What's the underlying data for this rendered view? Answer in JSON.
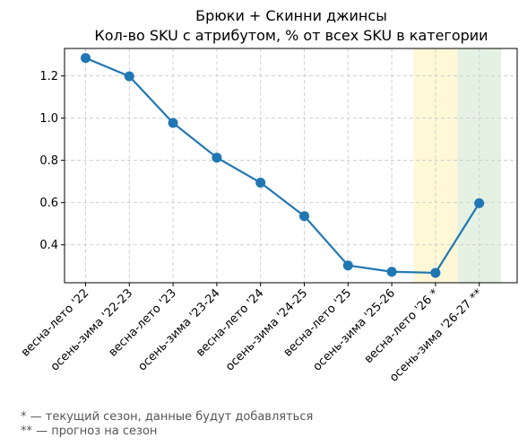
{
  "chart_data": {
    "type": "line",
    "title": "Брюки + Скинни джинсы",
    "subtitle": "Кол-во SKU с атрибутом, % от всех SKU в категории",
    "xlabel": "",
    "ylabel": "",
    "categories": [
      "весна-лето '22",
      "осень-зима '22-23",
      "весна-лето '23",
      "осень-зима '23-24",
      "весна-лето '24",
      "осень-зима '24-25",
      "весна-лето '25",
      "осень-зима '25-26",
      "весна-лето '26 *",
      "осень-зима '26-27 **"
    ],
    "series": [
      {
        "values": [
          1.285,
          1.198,
          0.977,
          0.813,
          0.694,
          0.536,
          0.302,
          0.272,
          0.267,
          0.597
        ],
        "color": "#1f77b4"
      }
    ],
    "ylim": [
      0.22,
      1.33
    ],
    "yticks": [
      "0.4",
      "0.6",
      "0.8",
      "1.0",
      "1.2"
    ],
    "grid": true,
    "highlights": [
      {
        "category": "весна-лето '26 *",
        "color": "#fff7d6"
      },
      {
        "category": "осень-зима '26-27 **",
        "color": "#e5f2e3"
      }
    ]
  },
  "notes": {
    "current": "* — текущий сезон, данные будут добавляться",
    "forecast": "** — прогноз на сезон"
  }
}
